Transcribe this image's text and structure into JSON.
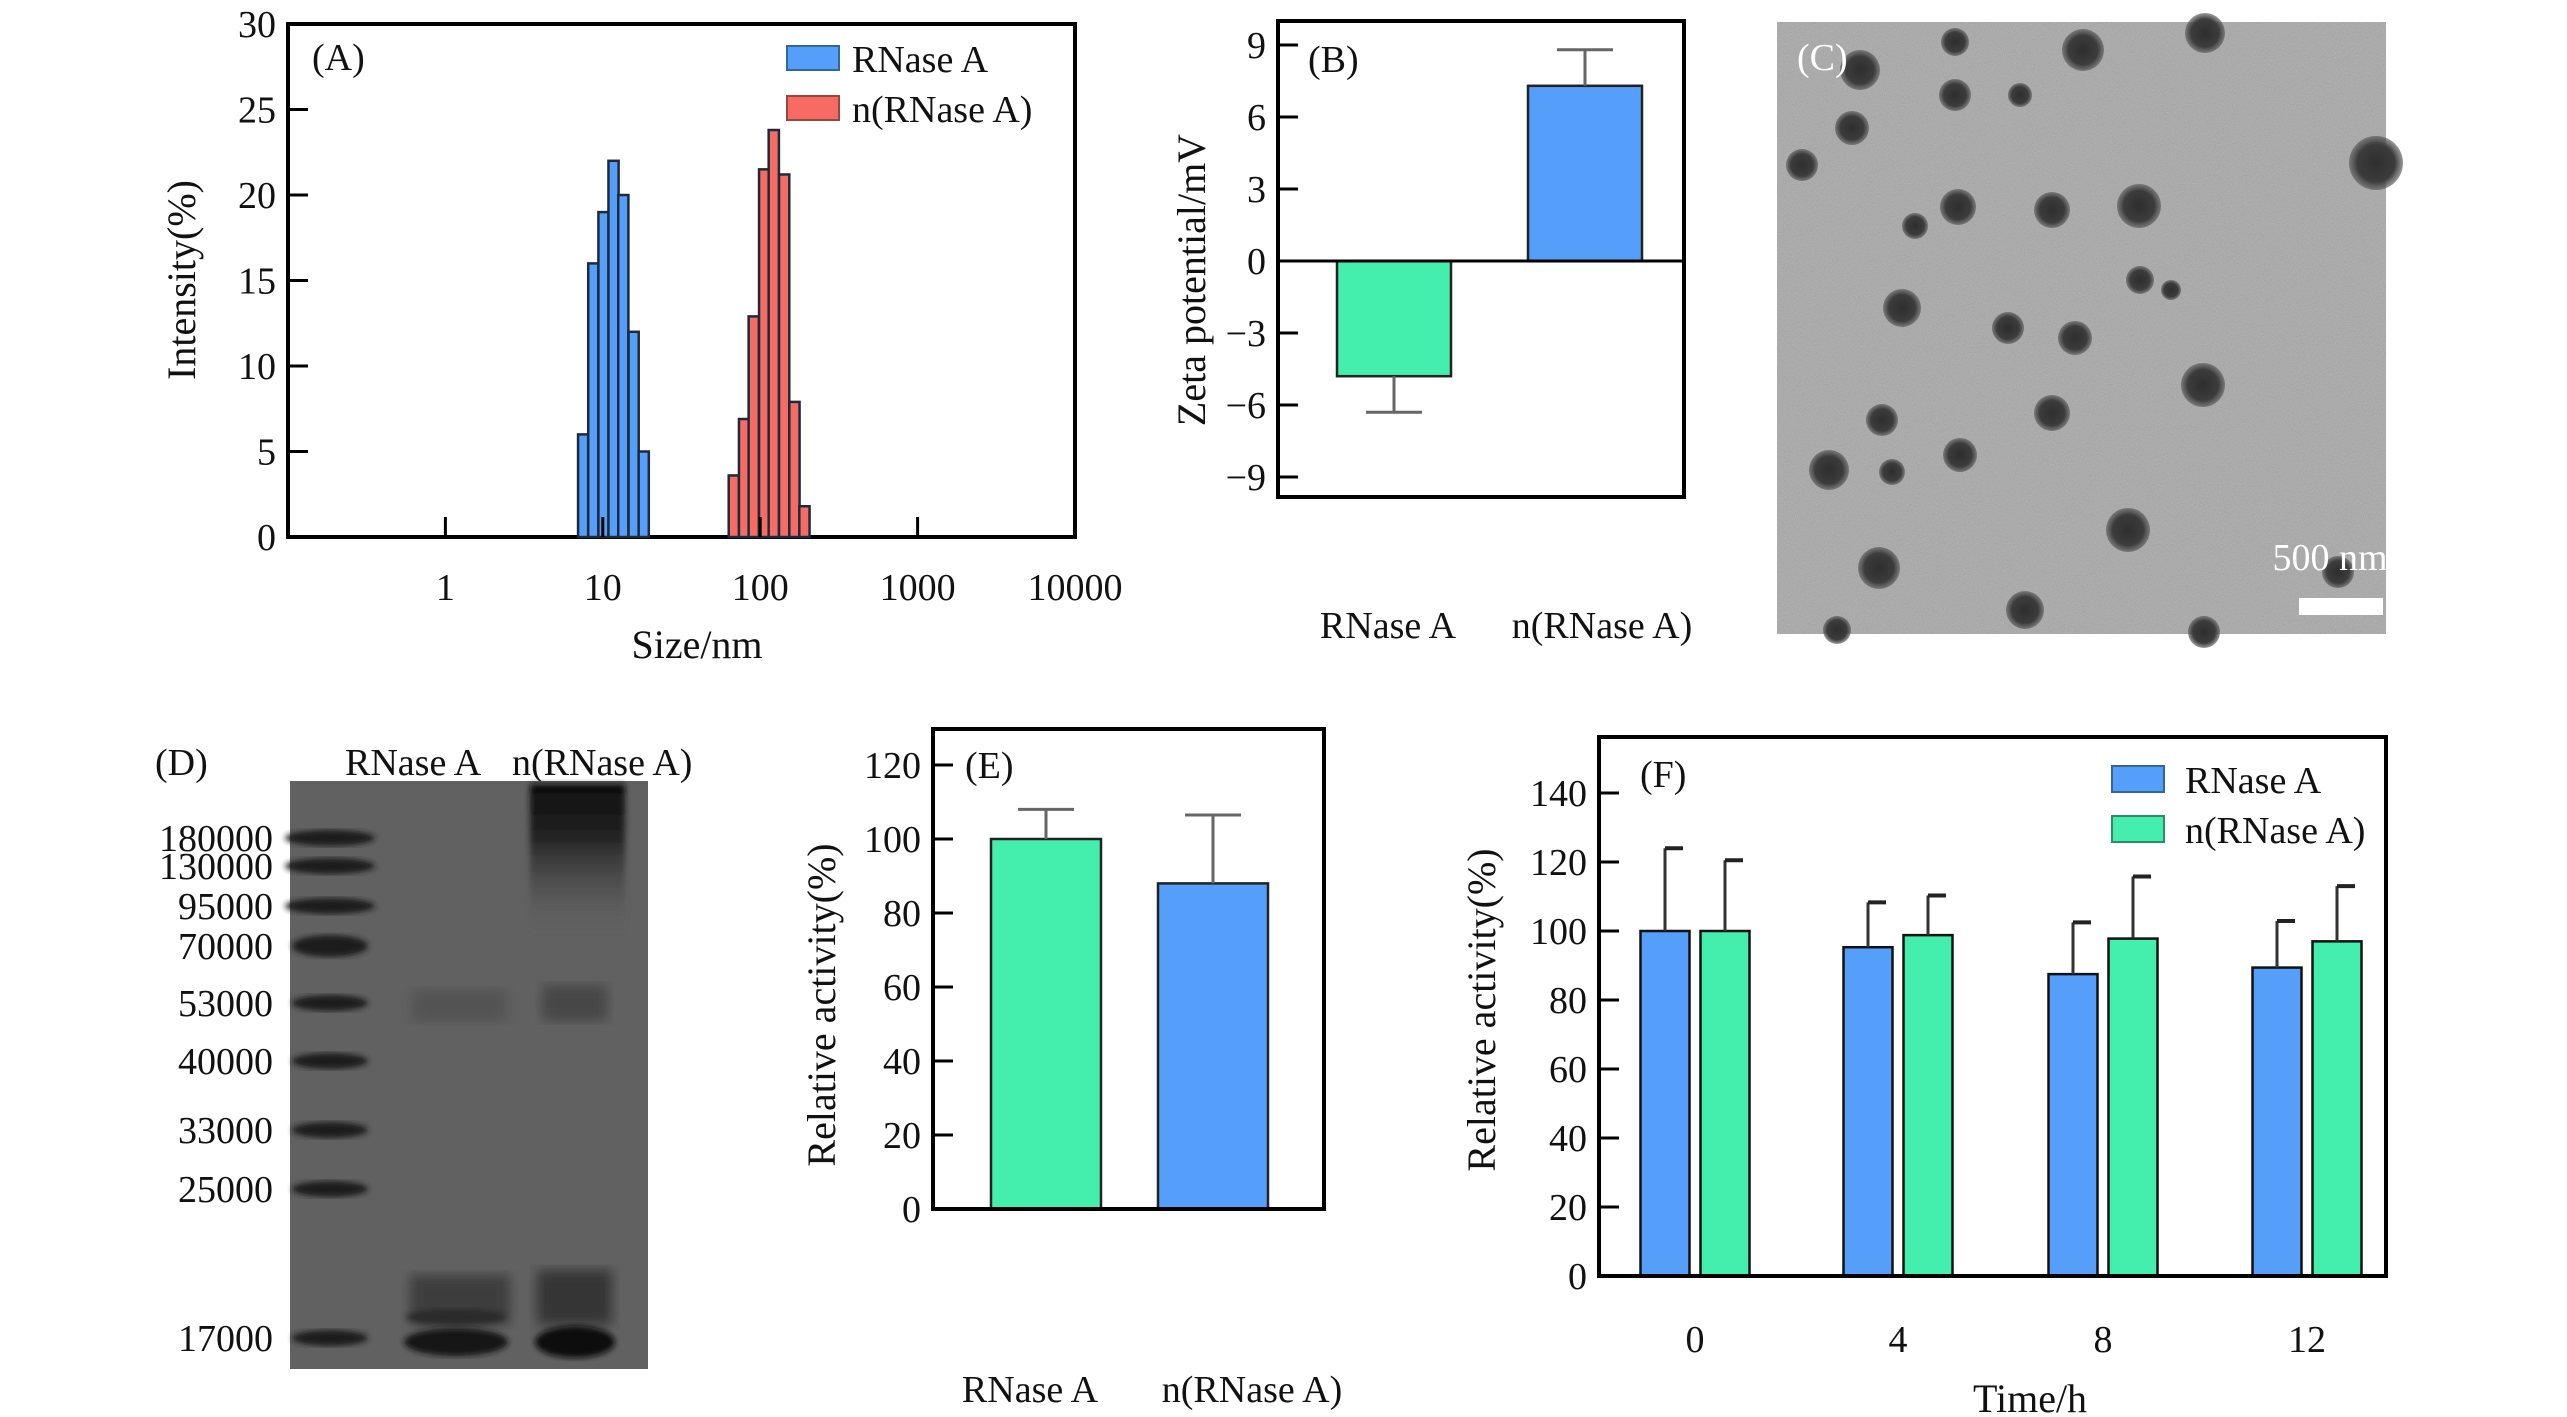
{
  "figure": {
    "colors": {
      "blue": "#559ffb",
      "red": "#f66c64",
      "green": "#44efad",
      "gel_bg": "#616161",
      "tem_bg": "#a6a6a6",
      "particle": "#3a3a3a"
    }
  },
  "chart_data": [
    {
      "panel": "A",
      "type": "bar",
      "panel_label": "(A)",
      "title": "",
      "xlabel": "Size/nm",
      "ylabel": "Intensity(%)",
      "xscale": "log",
      "xlim": [
        0.1,
        10000
      ],
      "ylim": [
        0,
        30
      ],
      "xticks": [
        1,
        10,
        100,
        1000,
        10000
      ],
      "xtick_labels": [
        "1",
        "10",
        "100",
        "1000",
        "10000"
      ],
      "yticks": [
        0,
        5,
        10,
        15,
        20,
        25,
        30
      ],
      "ytick_labels": [
        "0",
        "5",
        "10",
        "15",
        "20",
        "25",
        "30"
      ],
      "legend": {
        "position": "top-right",
        "entries": [
          "RNase A",
          "n(RNase A)"
        ]
      },
      "series": [
        {
          "name": "RNase A",
          "color": "#559ffb",
          "x": [
            7.5,
            8.7,
            10.1,
            11.7,
            13.5,
            15.7,
            18.2
          ],
          "values": [
            6,
            16,
            19,
            22,
            20,
            12,
            5
          ]
        },
        {
          "name": "n(RNase A)",
          "color": "#f66c64",
          "x": [
            68,
            79,
            91,
            106,
            122,
            142,
            165,
            191
          ],
          "values": [
            3.6,
            6.9,
            12.9,
            21.5,
            23.8,
            21.2,
            7.9,
            1.8
          ]
        }
      ]
    },
    {
      "panel": "B",
      "type": "bar",
      "panel_label": "(B)",
      "title": "",
      "xlabel": "",
      "ylabel": "Zeta potential/mV",
      "ylim": [
        -10.5,
        10.0
      ],
      "yticks": [
        -9,
        -6,
        -3,
        0,
        3,
        6,
        9
      ],
      "ytick_labels": [
        "−9",
        "−6",
        "−3",
        "0",
        "3",
        "6",
        "9"
      ],
      "categories": [
        "RNase A",
        "n(RNase A)"
      ],
      "values": [
        -4.8,
        7.3
      ],
      "errors": [
        1.5,
        1.5
      ],
      "colors": [
        "#44efad",
        "#559ffb"
      ]
    },
    {
      "panel": "E",
      "type": "bar",
      "panel_label": "(E)",
      "title": "",
      "xlabel": "",
      "ylabel": "Relative activity(%)",
      "ylim": [
        0,
        130
      ],
      "yticks": [
        0,
        20,
        40,
        60,
        80,
        100,
        120
      ],
      "ytick_labels": [
        "0",
        "20",
        "40",
        "60",
        "80",
        "100",
        "120"
      ],
      "categories": [
        "RNase A",
        "n(RNase A)"
      ],
      "values": [
        100,
        88
      ],
      "errors": [
        8,
        18.5
      ],
      "colors": [
        "#44efad",
        "#559ffb"
      ]
    },
    {
      "panel": "F",
      "type": "bar",
      "panel_label": "(F)",
      "title": "",
      "xlabel": "Time/h",
      "ylabel": "Relative activity(%)",
      "ylim": [
        0,
        158
      ],
      "yticks": [
        0,
        20,
        40,
        60,
        80,
        100,
        120,
        140
      ],
      "ytick_labels": [
        "0",
        "20",
        "40",
        "60",
        "80",
        "100",
        "120",
        "140"
      ],
      "categories": [
        "0",
        "4",
        "8",
        "12"
      ],
      "legend": {
        "position": "top-right",
        "entries": [
          "RNase A",
          "n(RNase A)"
        ]
      },
      "series": [
        {
          "name": "RNase A",
          "color": "#559ffb",
          "values": [
            100,
            95.3,
            87.5,
            89.4
          ],
          "errors": [
            24,
            13,
            15,
            13.5
          ]
        },
        {
          "name": "n(RNase A)",
          "color": "#44efad",
          "values": [
            100,
            98.8,
            97.8,
            97
          ],
          "errors": [
            20.5,
            11.5,
            18,
            16
          ]
        }
      ]
    }
  ],
  "panel_c": {
    "panel_label": "(C)",
    "scale_bar_label": "500 nm"
  },
  "panel_d": {
    "panel_label": "(D)",
    "lane_labels": [
      "RNase A",
      "n(RNase A)"
    ],
    "ladder": [
      "180000",
      "130000",
      "95000",
      "70000",
      "53000",
      "40000",
      "33000",
      "25000",
      "17000"
    ]
  }
}
